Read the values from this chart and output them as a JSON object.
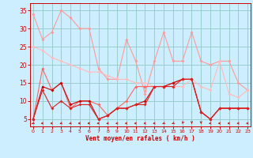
{
  "x": [
    0,
    1,
    2,
    3,
    4,
    5,
    6,
    7,
    8,
    9,
    10,
    11,
    12,
    13,
    14,
    15,
    16,
    17,
    18,
    19,
    20,
    21,
    22,
    23
  ],
  "line1": {
    "color": "#ff9999",
    "values": [
      34,
      27,
      29,
      35,
      33,
      30,
      30,
      19,
      16,
      16,
      27,
      21,
      12,
      21,
      29,
      21,
      21,
      29,
      21,
      20,
      21,
      21,
      15,
      13
    ]
  },
  "line2": {
    "color": "#ffbbbb",
    "values": [
      25,
      24,
      22,
      21,
      20,
      19,
      18,
      18,
      17,
      16,
      16,
      15,
      15,
      14,
      14,
      14,
      14,
      16,
      14,
      13,
      21,
      12,
      11,
      13
    ]
  },
  "line3": {
    "color": "#ff6666",
    "values": [
      5,
      19,
      13,
      15,
      8,
      10,
      10,
      9,
      6,
      8,
      10,
      14,
      14,
      14,
      14,
      15,
      16,
      16,
      7,
      5,
      8,
      8,
      8,
      8
    ]
  },
  "line4": {
    "color": "#cc0000",
    "values": [
      5,
      14,
      13,
      15,
      9,
      10,
      10,
      5,
      6,
      8,
      8,
      9,
      10,
      14,
      14,
      15,
      16,
      16,
      7,
      5,
      8,
      8,
      8,
      8
    ]
  },
  "line5": {
    "color": "#dd2222",
    "values": [
      5,
      13,
      8,
      10,
      8,
      9,
      9,
      5,
      6,
      8,
      8,
      9,
      9,
      14,
      14,
      14,
      16,
      16,
      7,
      5,
      8,
      8,
      8,
      8
    ]
  },
  "xlabel": "Vent moyen/en rafales ( km/h )",
  "yticks": [
    5,
    10,
    15,
    20,
    25,
    30,
    35
  ],
  "xticks": [
    0,
    1,
    2,
    3,
    4,
    5,
    6,
    7,
    8,
    9,
    10,
    11,
    12,
    13,
    14,
    15,
    16,
    17,
    18,
    19,
    20,
    21,
    22,
    23
  ],
  "ylim": [
    3,
    37
  ],
  "xlim": [
    -0.3,
    23.3
  ],
  "bg_color": "#cceeff",
  "grid_color": "#99cccc",
  "text_color": "#cc0000",
  "arrow_angles": [
    225,
    200,
    195,
    215,
    215,
    180,
    180,
    195,
    210,
    200,
    195,
    195,
    200,
    205,
    225,
    235,
    260,
    270,
    270,
    200,
    195,
    195,
    200,
    195
  ]
}
